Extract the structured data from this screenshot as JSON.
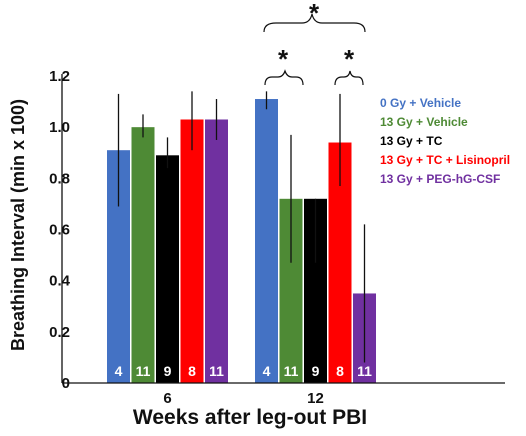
{
  "chart_data": {
    "type": "bar",
    "title": "",
    "xlabel": "Weeks after leg-out PBI",
    "ylabel": "Breathing Interval (min x 100)",
    "ylim": [
      0,
      1.2
    ],
    "yticks": [
      "0",
      "0.2",
      "0.4",
      "0.6",
      "0.8",
      "1.0",
      "1.2"
    ],
    "categories": [
      "6",
      "12"
    ],
    "series": [
      {
        "name": "0 Gy + Vehicle",
        "color": "#4472C4",
        "values": [
          0.91,
          1.11
        ],
        "error_low": [
          0.69,
          1.07
        ],
        "error_high": [
          1.13,
          1.14
        ],
        "n": [
          "4",
          "4"
        ]
      },
      {
        "name": "13 Gy + Vehicle",
        "color": "#4E8A35",
        "values": [
          1.0,
          0.72
        ],
        "error_low": [
          0.96,
          0.47
        ],
        "error_high": [
          1.05,
          0.97
        ],
        "n": [
          "11",
          "11"
        ]
      },
      {
        "name": "13 Gy + TC",
        "color": "#000000",
        "values": [
          0.89,
          0.72
        ],
        "error_low": [
          0.84,
          0.47
        ],
        "error_high": [
          0.96,
          0.72
        ],
        "n": [
          "9",
          "9"
        ]
      },
      {
        "name": "13 Gy + TC + Lisinopril",
        "color": "#FF0000",
        "values": [
          1.03,
          0.94
        ],
        "error_low": [
          0.91,
          0.77
        ],
        "error_high": [
          1.14,
          1.13
        ],
        "n": [
          "8",
          "8"
        ]
      },
      {
        "name": "13 Gy + PEG-hG-CSF",
        "color": "#7030A0",
        "values": [
          1.03,
          0.35
        ],
        "error_low": [
          0.95,
          0.08
        ],
        "error_high": [
          1.11,
          0.62
        ],
        "n": [
          "11",
          "11"
        ]
      }
    ],
    "legend_position": "inside right",
    "annotations": [
      "*",
      "*",
      "*"
    ]
  }
}
